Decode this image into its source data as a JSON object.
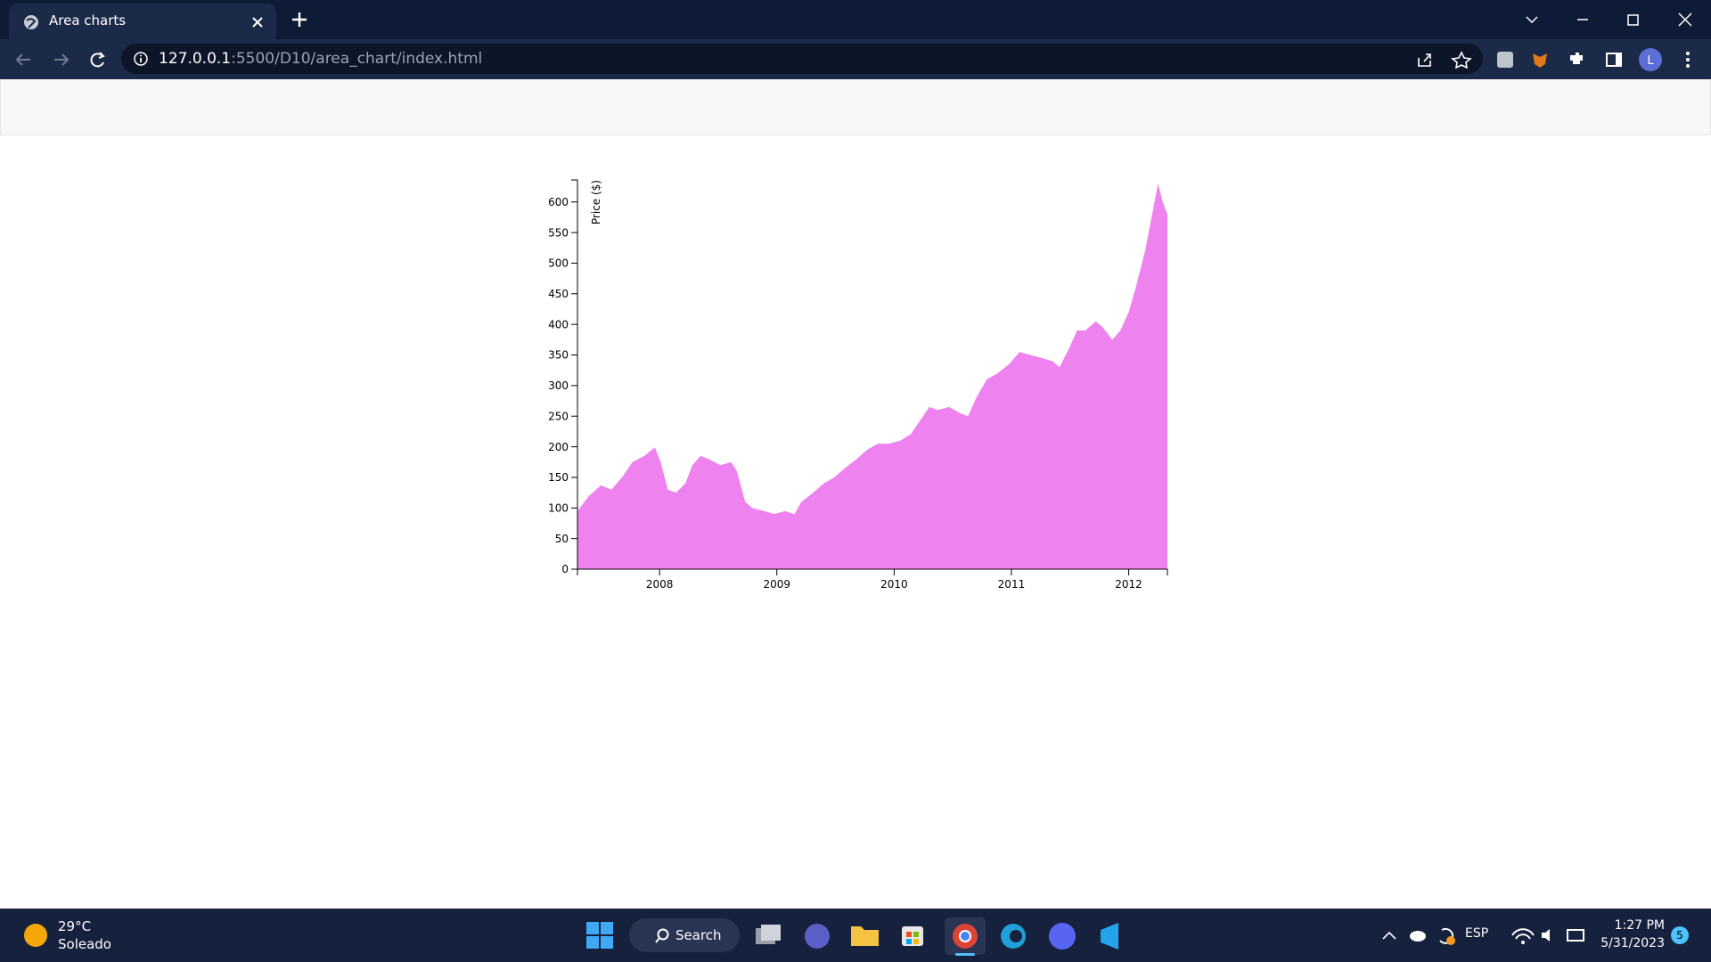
{
  "browser": {
    "tab_title": "Area charts",
    "url_host": "127.0.0.1",
    "url_path": ":5500/D10/area_chart/index.html"
  },
  "chart_data": {
    "type": "area",
    "y_label": "Price ($)",
    "color": "#ee82ee",
    "x": [
      2007.3,
      2007.4,
      2007.5,
      2007.59,
      2007.68,
      2007.77,
      2007.87,
      2007.96,
      2008.01,
      2008.07,
      2008.14,
      2008.22,
      2008.28,
      2008.35,
      2008.42,
      2008.52,
      2008.61,
      2008.66,
      2008.73,
      2008.79,
      2008.89,
      2008.98,
      2009.07,
      2009.15,
      2009.21,
      2009.31,
      2009.4,
      2009.49,
      2009.58,
      2009.68,
      2009.77,
      2009.86,
      2009.96,
      2010.05,
      2010.14,
      2010.23,
      2010.3,
      2010.37,
      2010.47,
      2010.56,
      2010.63,
      2010.7,
      2010.79,
      2010.88,
      2010.98,
      2011.07,
      2011.16,
      2011.26,
      2011.35,
      2011.41,
      2011.49,
      2011.56,
      2011.63,
      2011.72,
      2011.78,
      2011.86,
      2011.93,
      2012.0,
      2012.06,
      2012.14,
      2012.21,
      2012.25,
      2012.29,
      2012.33
    ],
    "values": [
      95,
      120,
      137,
      130,
      150,
      175,
      185,
      199,
      175,
      130,
      125,
      140,
      170,
      185,
      180,
      170,
      175,
      160,
      110,
      100,
      95,
      90,
      95,
      90,
      110,
      125,
      140,
      150,
      165,
      180,
      195,
      205,
      205,
      210,
      220,
      245,
      265,
      260,
      265,
      255,
      250,
      280,
      310,
      320,
      335,
      355,
      350,
      345,
      340,
      330,
      360,
      390,
      390,
      405,
      395,
      375,
      390,
      420,
      460,
      520,
      590,
      630,
      600,
      580
    ],
    "xlim": [
      2007.3,
      2012.33
    ],
    "xticks": [
      2008,
      2009,
      2010,
      2011,
      2012
    ],
    "ylim": [
      0,
      636
    ],
    "yticks": [
      0,
      50,
      100,
      150,
      200,
      250,
      300,
      350,
      400,
      450,
      500,
      550,
      600
    ]
  },
  "taskbar": {
    "temperature": "29°C",
    "weather": "Soleado",
    "search": "Search",
    "language": "ESP",
    "time": "1:27 PM",
    "date": "5/31/2023",
    "notifications": "5"
  }
}
